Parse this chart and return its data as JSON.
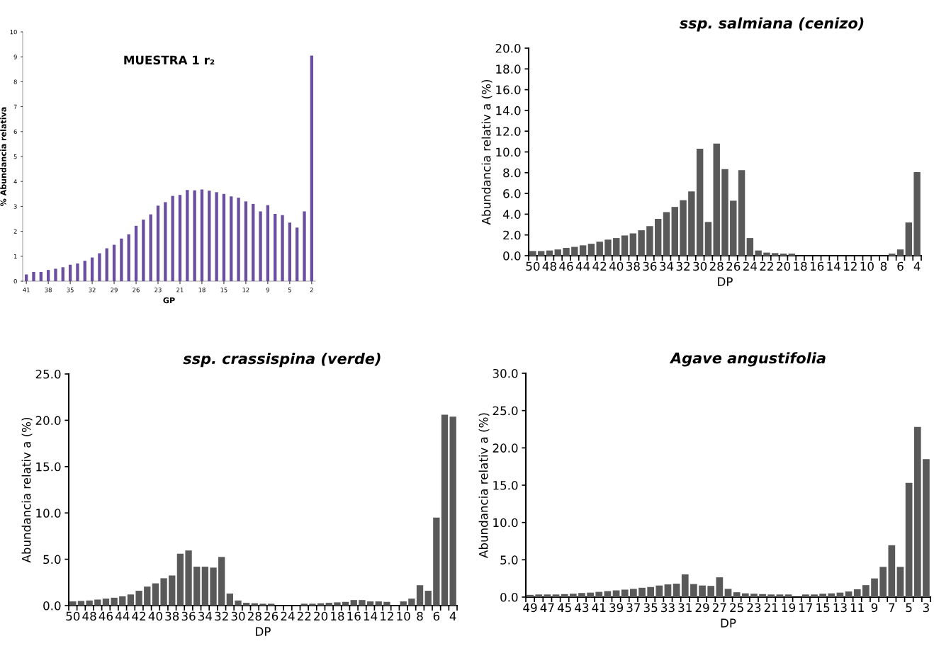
{
  "chart_data": [
    {
      "type": "bar",
      "title": "MUESTRA 1 r₂",
      "xlabel": "GP",
      "ylabel": "% Abundancia relativa",
      "color": "#6a4f9e",
      "categories": [
        "41",
        null,
        null,
        "38",
        null,
        null,
        "35",
        null,
        null,
        "32",
        null,
        null,
        "29",
        null,
        null,
        "26",
        null,
        null,
        "23",
        null,
        null,
        "21",
        null,
        null,
        "18",
        null,
        null,
        "15",
        null,
        null,
        "12",
        null,
        null,
        "9",
        null,
        null,
        "5",
        null,
        null,
        "2"
      ],
      "values": [
        0.27,
        0.37,
        0.37,
        0.45,
        0.5,
        0.56,
        0.66,
        0.71,
        0.82,
        0.95,
        1.12,
        1.32,
        1.46,
        1.71,
        1.88,
        2.22,
        2.47,
        2.68,
        3.03,
        3.17,
        3.42,
        3.46,
        3.66,
        3.64,
        3.68,
        3.63,
        3.57,
        3.5,
        3.4,
        3.35,
        3.2,
        3.1,
        2.8,
        3.05,
        2.7,
        2.65,
        2.35,
        2.15,
        2.8,
        9.05
      ],
      "ylim": [
        0,
        10
      ],
      "yticks": [
        0,
        1,
        2,
        3,
        4,
        5,
        6,
        7,
        8,
        9,
        10
      ]
    },
    {
      "type": "bar",
      "title": "ssp. salmiana (cenizo)",
      "xlabel": "DP",
      "ylabel": "Abundancia relativ a (%)",
      "color": "#595959",
      "categories": [
        "50",
        null,
        "48",
        null,
        "46",
        null,
        "44",
        null,
        "42",
        null,
        "40",
        null,
        "38",
        null,
        "36",
        null,
        "34",
        null,
        "32",
        null,
        "30",
        null,
        "28",
        null,
        "26",
        null,
        "24",
        null,
        "22",
        null,
        "20",
        null,
        "18",
        null,
        "16",
        null,
        "14",
        null,
        "12",
        null,
        "10",
        null,
        "8",
        null,
        "6",
        null,
        "4"
      ],
      "values": [
        0.45,
        0.45,
        0.5,
        0.6,
        0.75,
        0.85,
        1.0,
        1.15,
        1.35,
        1.55,
        1.7,
        1.95,
        2.15,
        2.45,
        2.85,
        3.55,
        4.2,
        4.7,
        5.35,
        6.2,
        10.3,
        3.25,
        10.8,
        8.35,
        5.3,
        8.25,
        1.7,
        0.5,
        0.3,
        0.25,
        0.2,
        0.2,
        0,
        0,
        0,
        0,
        0,
        0,
        0,
        0,
        0,
        0,
        0,
        0.2,
        0.6,
        3.2,
        8.05
      ],
      "ylim": [
        0,
        20
      ],
      "yticks": [
        {
          "value": 0,
          "label": "0.0"
        },
        {
          "value": 2,
          "label": "2.0"
        },
        {
          "value": 4,
          "label": "4.0"
        },
        {
          "value": 6,
          "label": "6.0"
        },
        {
          "value": 8,
          "label": "8.0"
        },
        {
          "value": 10,
          "label": "10.0"
        },
        {
          "value": 12,
          "label": "12.0"
        },
        {
          "value": 14,
          "label": "14.0"
        },
        {
          "value": 16,
          "label": "16.0"
        },
        {
          "value": 18,
          "label": "18.0"
        },
        {
          "value": 20,
          "label": "20.0"
        }
      ]
    },
    {
      "type": "bar",
      "title": "ssp. crassispina (verde)",
      "xlabel": "DP",
      "ylabel": "Abundancia relativ a (%)",
      "color": "#595959",
      "categories": [
        "50",
        null,
        "48",
        null,
        "46",
        null,
        "44",
        null,
        "42",
        null,
        "40",
        null,
        "38",
        null,
        "36",
        null,
        "34",
        null,
        "32",
        null,
        "30",
        null,
        "28",
        null,
        "26",
        null,
        "24",
        null,
        "22",
        null,
        "20",
        null,
        "18",
        null,
        "16",
        null,
        "14",
        null,
        "12",
        null,
        "10",
        null,
        "8",
        null,
        "6",
        null,
        "4"
      ],
      "values": [
        0.45,
        0.5,
        0.55,
        0.65,
        0.75,
        0.85,
        1.0,
        1.2,
        1.6,
        2.05,
        2.4,
        2.95,
        3.25,
        5.6,
        5.95,
        4.2,
        4.2,
        4.1,
        5.25,
        1.3,
        0.55,
        0.3,
        0.25,
        0.2,
        0.2,
        0,
        0,
        0,
        0.2,
        0.2,
        0.25,
        0.3,
        0.35,
        0.4,
        0.6,
        0.6,
        0.45,
        0.45,
        0.4,
        0,
        0.45,
        0.75,
        2.2,
        1.6,
        9.5,
        20.6,
        20.4
      ],
      "ylim": [
        0,
        25
      ],
      "yticks": [
        {
          "value": 0,
          "label": "0.0"
        },
        {
          "value": 5,
          "label": "5.0"
        },
        {
          "value": 10,
          "label": "10.0"
        },
        {
          "value": 15,
          "label": "15.0"
        },
        {
          "value": 20,
          "label": "20.0"
        },
        {
          "value": 25,
          "label": "25.0"
        }
      ]
    },
    {
      "type": "bar",
      "title": "Agave angustifolia",
      "xlabel": "DP",
      "ylabel": "Abundancia relativ a (%)",
      "color": "#595959",
      "categories": [
        "49",
        null,
        "47",
        null,
        "45",
        null,
        "43",
        null,
        "41",
        null,
        "39",
        null,
        "37",
        null,
        "35",
        null,
        "33",
        null,
        "31",
        null,
        "29",
        null,
        "27",
        null,
        "25",
        null,
        "23",
        null,
        "21",
        null,
        "19",
        null,
        "17",
        null,
        "15",
        null,
        "13",
        null,
        "11",
        null,
        "9",
        null,
        "7",
        null,
        "5",
        null,
        "3"
      ],
      "values": [
        0.3,
        0.35,
        0.35,
        0.35,
        0.4,
        0.45,
        0.55,
        0.6,
        0.7,
        0.8,
        0.9,
        1.0,
        1.1,
        1.25,
        1.35,
        1.55,
        1.7,
        1.8,
        3.05,
        1.75,
        1.55,
        1.5,
        2.65,
        1.1,
        0.65,
        0.5,
        0.45,
        0.4,
        0.35,
        0.35,
        0.35,
        0,
        0.35,
        0.35,
        0.45,
        0.5,
        0.6,
        0.75,
        1.05,
        1.6,
        2.5,
        4.05,
        6.95,
        4.05,
        15.3,
        22.8,
        18.5
      ],
      "ylim": [
        0,
        30
      ],
      "yticks": [
        {
          "value": 0,
          "label": "0.0"
        },
        {
          "value": 5,
          "label": "5.0"
        },
        {
          "value": 10,
          "label": "10.0"
        },
        {
          "value": 15,
          "label": "15.0"
        },
        {
          "value": 20,
          "label": "20.0"
        },
        {
          "value": 25,
          "label": "25.0"
        },
        {
          "value": 30,
          "label": "30.0"
        }
      ]
    }
  ]
}
